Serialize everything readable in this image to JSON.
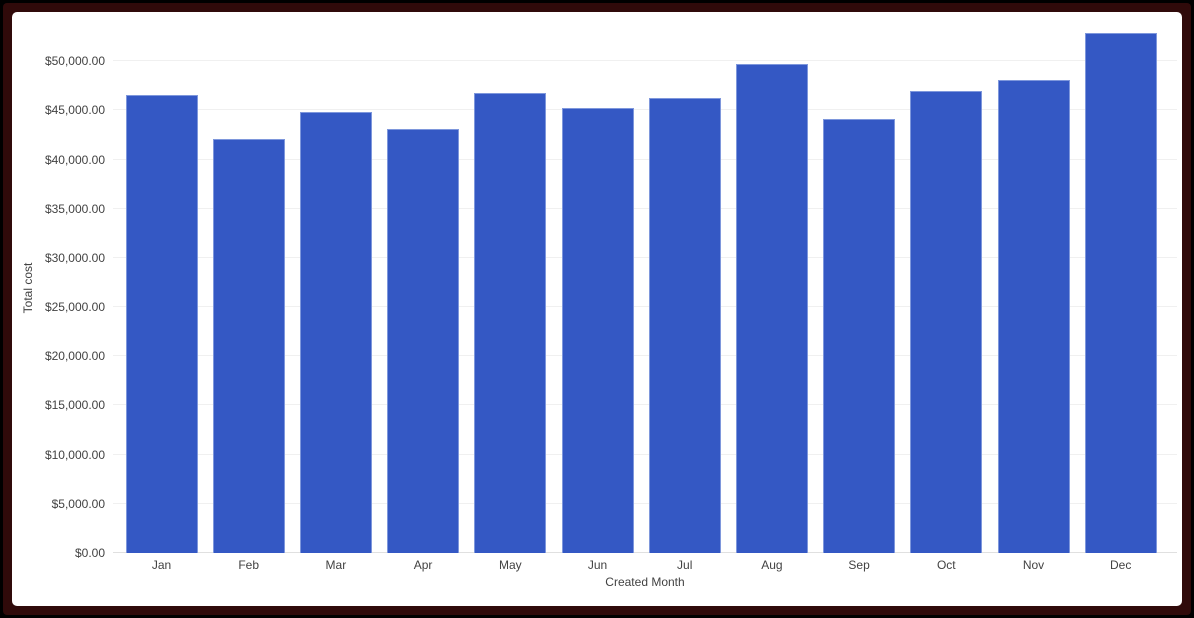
{
  "chart_data": {
    "type": "bar",
    "title": "",
    "categories": [
      "Jan",
      "Feb",
      "Mar",
      "Apr",
      "May",
      "Jun",
      "Jul",
      "Aug",
      "Sep",
      "Oct",
      "Nov",
      "Dec"
    ],
    "values": [
      46600,
      42100,
      44800,
      43100,
      46800,
      45200,
      46300,
      49700,
      44100,
      47000,
      48100,
      52900
    ],
    "xlabel": "Created Month",
    "ylabel": "Total cost",
    "ylim": [
      0,
      55000
    ],
    "ytick_step": 5000,
    "ytick_labels": [
      "$0.00",
      "$5,000.00",
      "$10,000.00",
      "$15,000.00",
      "$20,000.00",
      "$25,000.00",
      "$30,000.00",
      "$35,000.00",
      "$40,000.00",
      "$45,000.00",
      "$50,000.00"
    ],
    "grid": true,
    "legend": "none"
  },
  "theme": {
    "bar_color": "#3458c4",
    "bar_border_color": "#7e97dc",
    "gridline_color": "#f0f0f0",
    "baseline_color": "#e0e0e0",
    "axis_text_color": "#424242",
    "chart_background_color": "#ffffff",
    "frame_border_color": "#300a0a",
    "frame_outer_color": "#000000"
  }
}
